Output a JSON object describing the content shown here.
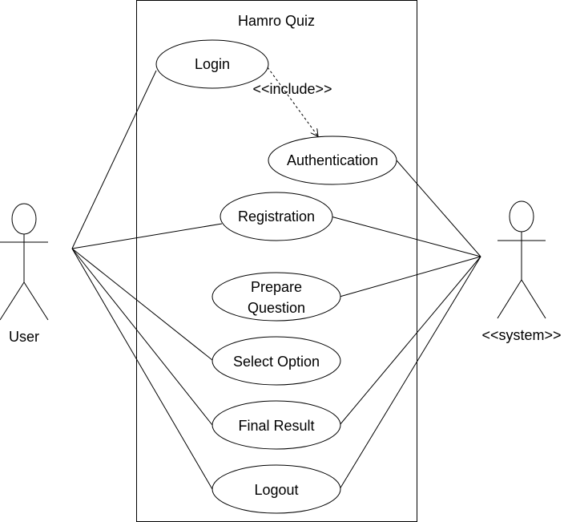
{
  "diagram": {
    "system_title": "Hamro Quiz",
    "actors": {
      "user": {
        "label": "User"
      },
      "system": {
        "label": "<<system>>"
      }
    },
    "use_cases": {
      "login": "Login",
      "authentication": "Authentication",
      "registration": "Registration",
      "prepare_question_line1": "Prepare",
      "prepare_question_line2": "Question",
      "select_option": "Select Option",
      "final_result": "Final Result",
      "logout": "Logout"
    },
    "relations": {
      "include_label": "<<include>>"
    }
  }
}
